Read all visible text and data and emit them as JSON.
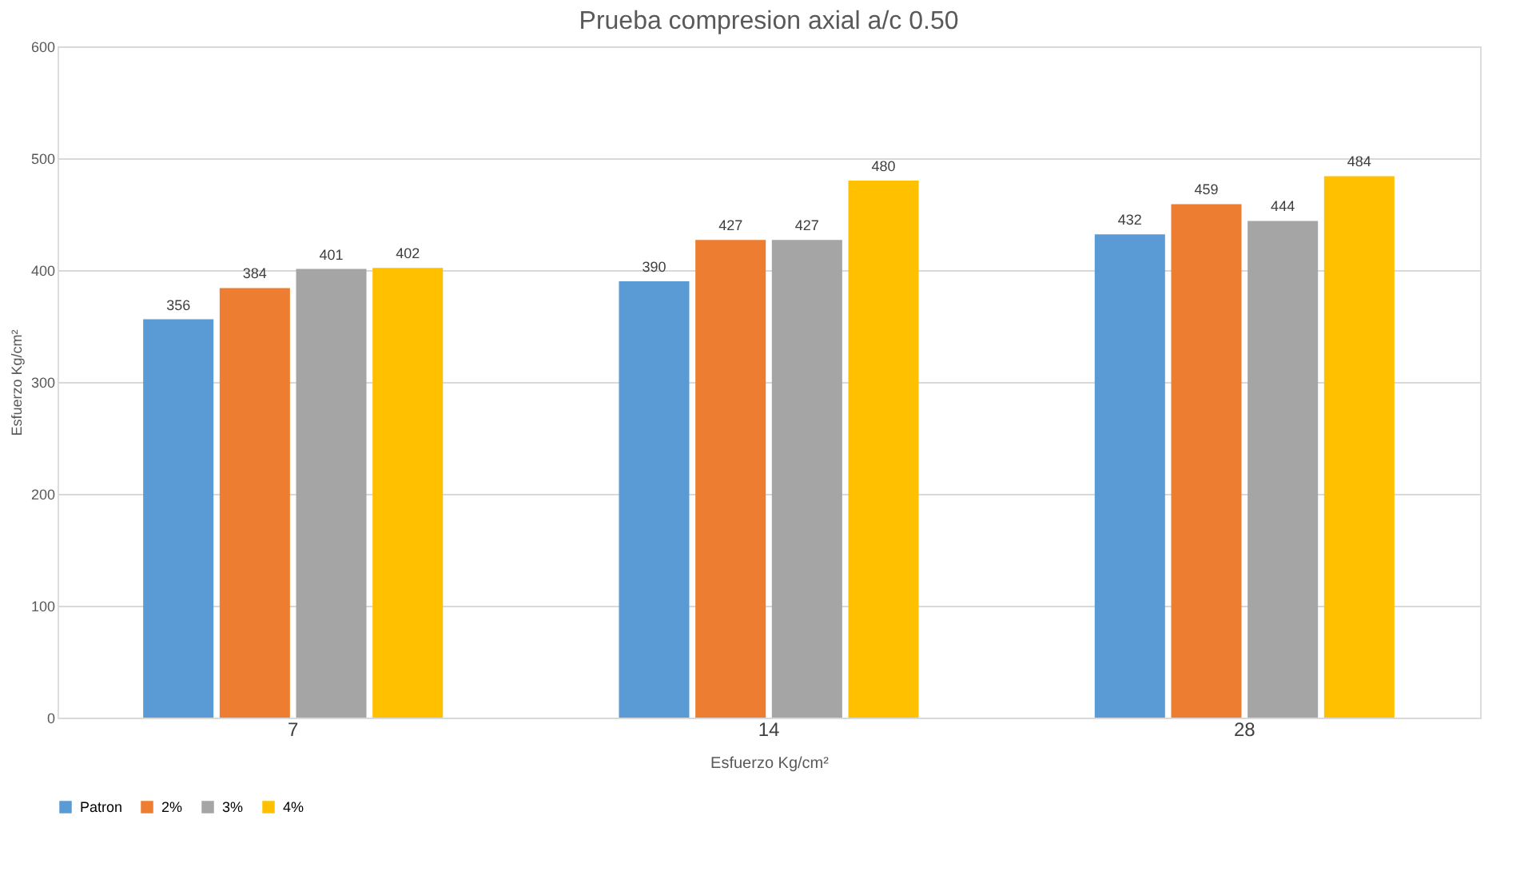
{
  "chart_data": {
    "type": "bar",
    "title": "Prueba compresion axial a/c 0.50",
    "xlabel": "Esfuerzo Kg/cm²",
    "ylabel": "Esfuerzo Kg/cm²",
    "categories": [
      "7",
      "14",
      "28"
    ],
    "series": [
      {
        "name": "Patron",
        "color": "#5b9bd5",
        "values": [
          356,
          390,
          432
        ]
      },
      {
        "name": "2%",
        "color": "#ed7d31",
        "values": [
          384,
          427,
          459
        ]
      },
      {
        "name": "3%",
        "color": "#a5a5a5",
        "values": [
          401,
          427,
          444
        ]
      },
      {
        "name": "4%",
        "color": "#ffc000",
        "values": [
          402,
          480,
          484
        ]
      }
    ],
    "ylim": [
      0,
      600
    ],
    "yticks": [
      0,
      100,
      200,
      300,
      400,
      500,
      600
    ],
    "grid": "y",
    "legend": "bottom",
    "data_labels": true
  }
}
